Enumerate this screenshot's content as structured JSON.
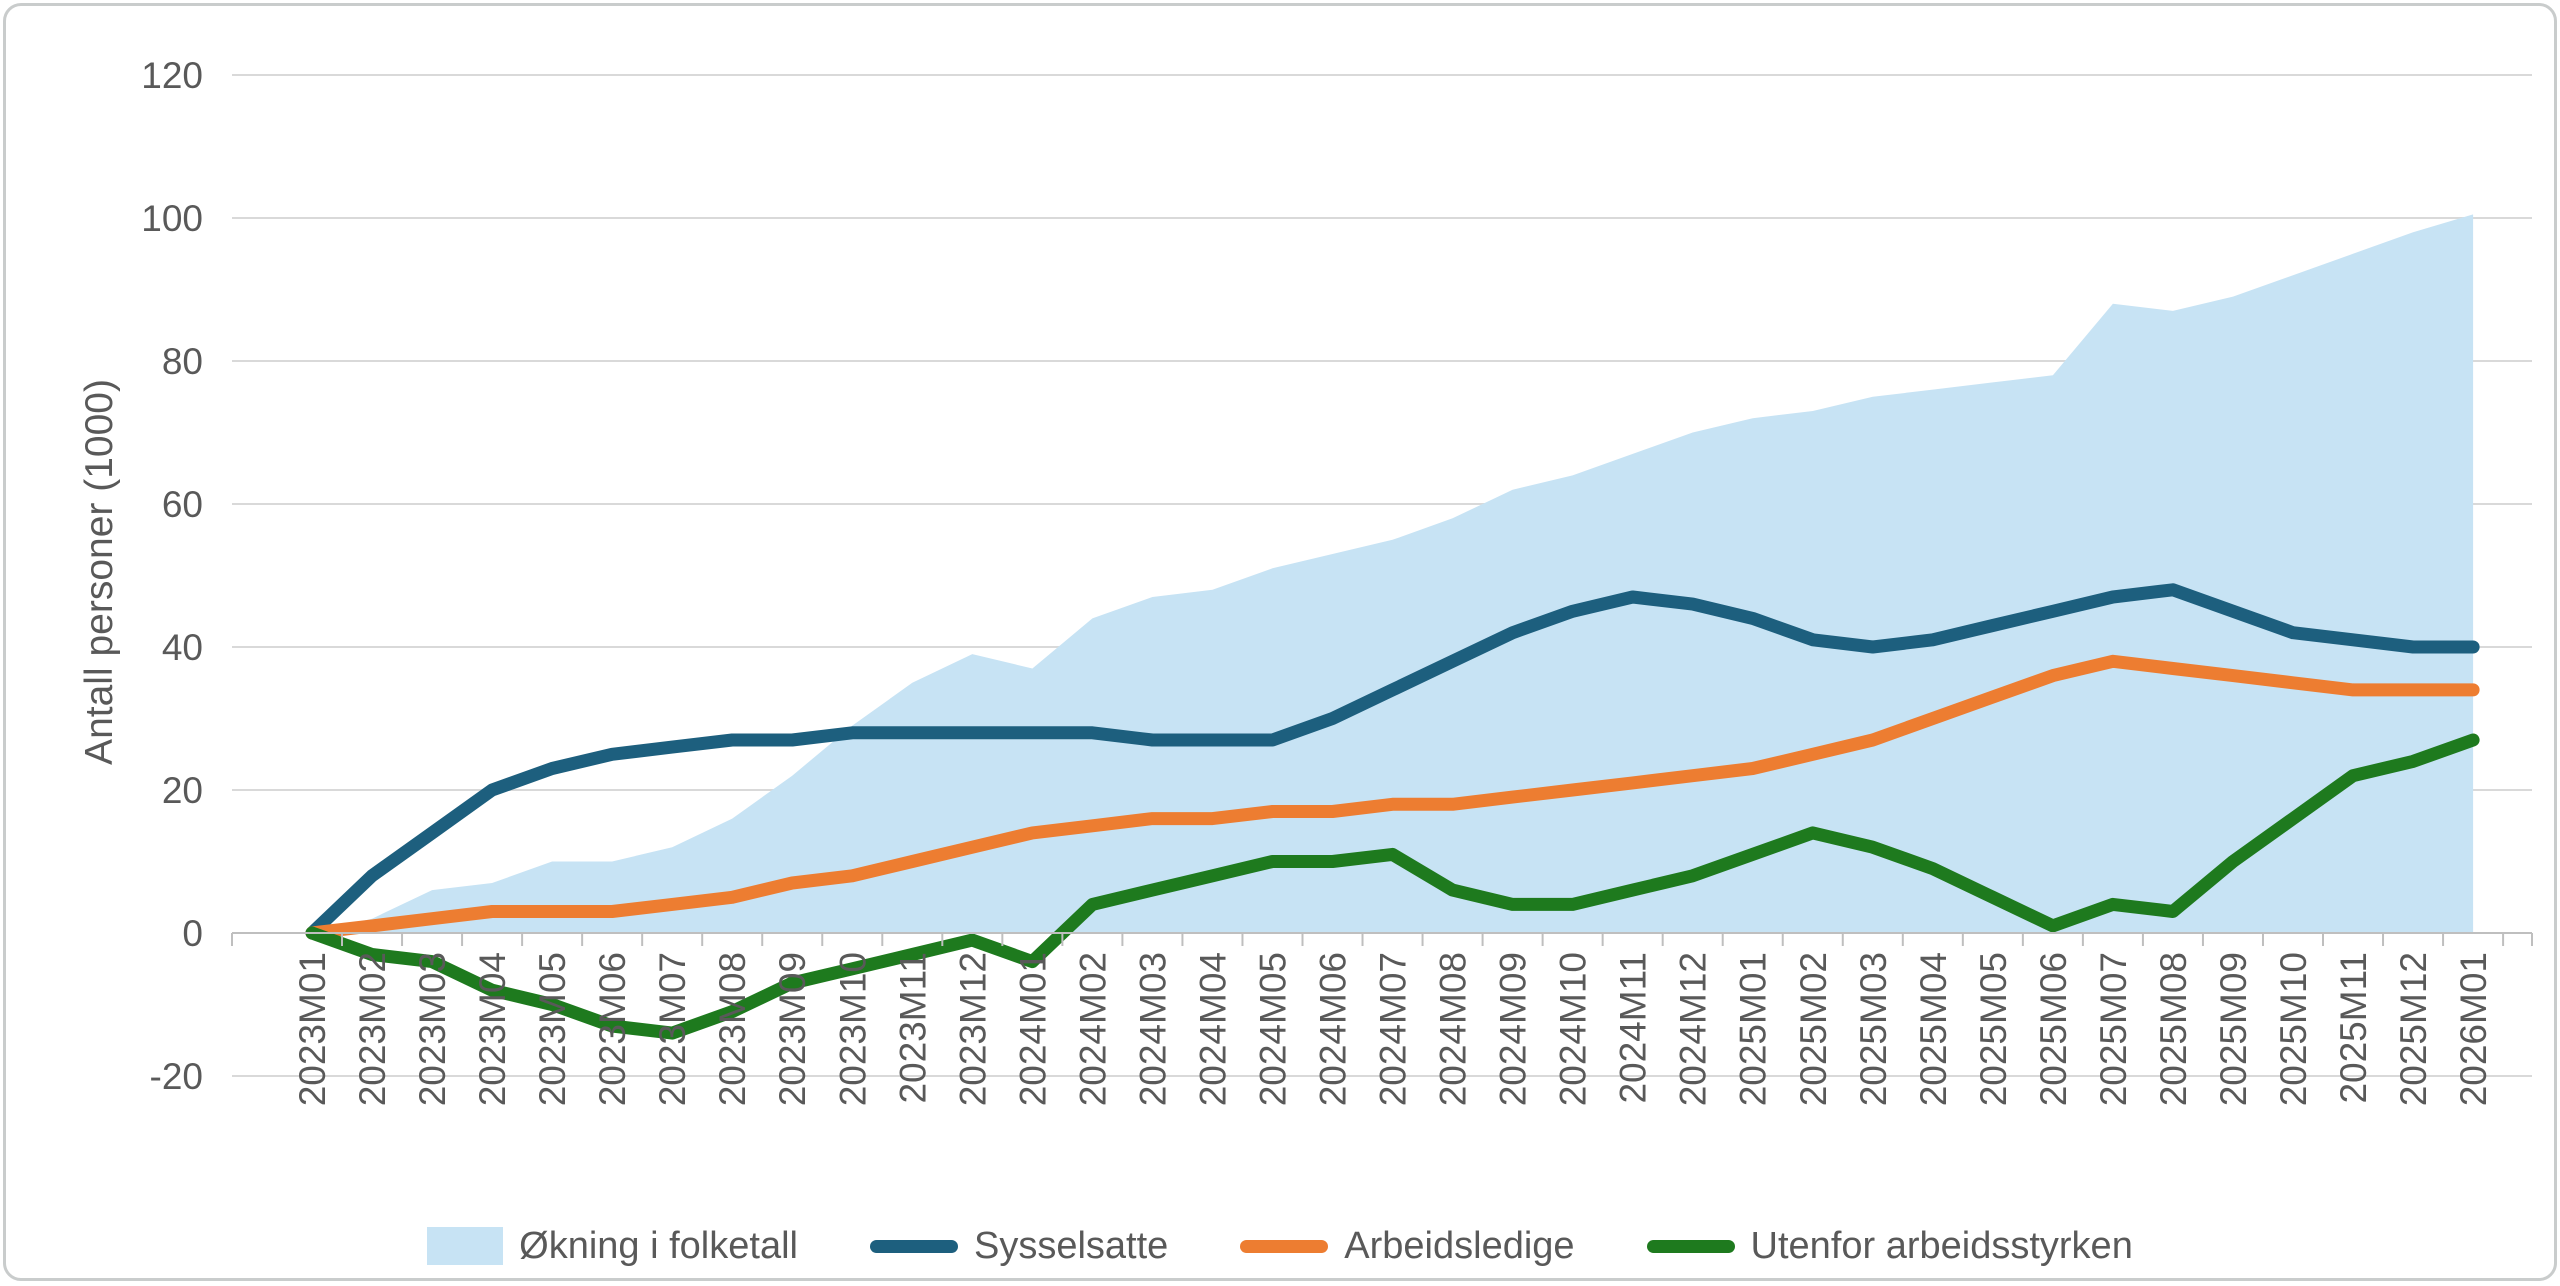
{
  "chart_data": {
    "type": "area",
    "title": "",
    "xlabel": "",
    "ylabel": "Antall personer (1000)",
    "ylim": [
      -20,
      120
    ],
    "yticks": [
      -20,
      0,
      20,
      40,
      60,
      80,
      100,
      120
    ],
    "grid": "horizontal",
    "legend_position": "bottom",
    "categories": [
      "2023M01",
      "2023M02",
      "2023M03",
      "2023M04",
      "2023M05",
      "2023M06",
      "2023M07",
      "2023M08",
      "2023M09",
      "2023M10",
      "2023M11",
      "2023M12",
      "2024M01",
      "2024M02",
      "2024M03",
      "2024M04",
      "2024M05",
      "2024M06",
      "2024M07",
      "2024M08",
      "2024M09",
      "2024M10",
      "2024M11",
      "2024M12",
      "2025M01",
      "2025M02",
      "2025M03",
      "2025M04",
      "2025M05",
      "2025M06",
      "2025M07",
      "2025M08",
      "2025M09",
      "2025M10",
      "2025M11",
      "2025M12",
      "2026M01"
    ],
    "series": [
      {
        "name": "Økning i folketall",
        "kind": "area",
        "color": "#c7e3f4",
        "values": [
          0,
          2,
          6,
          7,
          10,
          10,
          12,
          16,
          22,
          29,
          35,
          39,
          37,
          44,
          47,
          48,
          51,
          53,
          55,
          58,
          62,
          64,
          67,
          70,
          72,
          73,
          75,
          76,
          77,
          78,
          88,
          87,
          89,
          92,
          95,
          98,
          100.5
        ]
      },
      {
        "name": "Sysselsatte",
        "kind": "line",
        "color": "#1d5f7e",
        "values": [
          0,
          8,
          14,
          20,
          23,
          25,
          26,
          27,
          27,
          28,
          28,
          28,
          28,
          28,
          27,
          27,
          27,
          30,
          34,
          38,
          42,
          45,
          47,
          46,
          44,
          41,
          40,
          41,
          43,
          45,
          47,
          48,
          45,
          42,
          41,
          40,
          40
        ]
      },
      {
        "name": "Arbeidsledige",
        "kind": "line",
        "color": "#ed7d31",
        "values": [
          0,
          1,
          2,
          3,
          3,
          3,
          4,
          5,
          7,
          8,
          10,
          12,
          14,
          15,
          16,
          16,
          17,
          17,
          18,
          18,
          19,
          20,
          21,
          22,
          23,
          25,
          27,
          30,
          33,
          36,
          38,
          37,
          36,
          35,
          34,
          34,
          34
        ]
      },
      {
        "name": "Utenfor arbeidsstyrken",
        "kind": "line",
        "color": "#1e7a1e",
        "values": [
          0,
          -3,
          -4,
          -8,
          -10,
          -13,
          -14,
          -11,
          -7,
          -5,
          -3,
          -1,
          -4,
          4,
          6,
          8,
          10,
          10,
          11,
          6,
          4,
          4,
          6,
          8,
          11,
          14,
          12,
          9,
          5,
          1,
          4,
          3,
          10,
          16,
          22,
          24,
          27
        ]
      }
    ]
  }
}
